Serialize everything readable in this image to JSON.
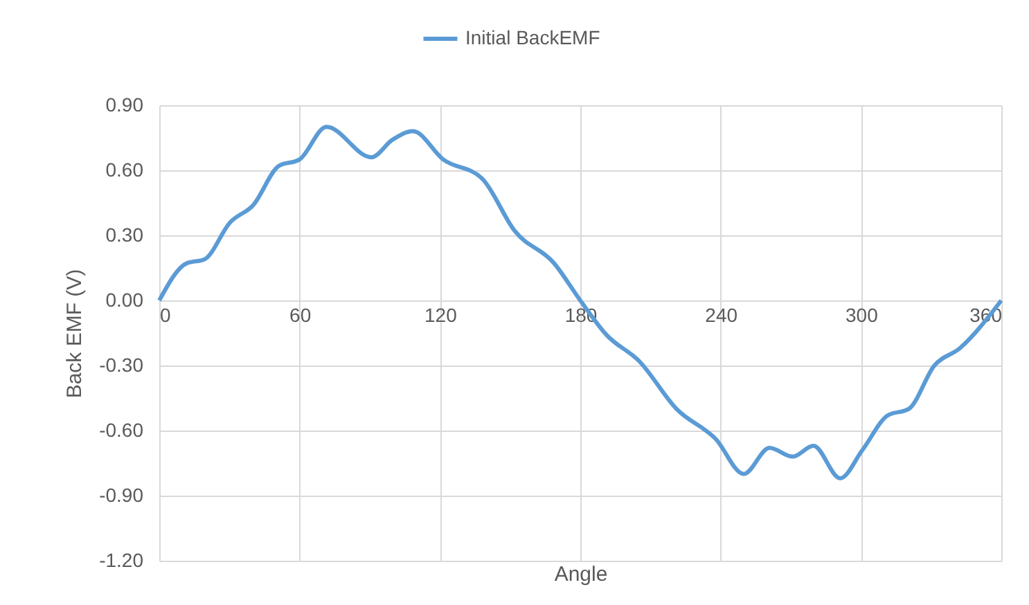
{
  "chart_data": {
    "type": "line",
    "xlabel": "Angle",
    "ylabel": "Back EMF (V)",
    "x": [
      0,
      11.5,
      19.4,
      30.3,
      40.2,
      51.1,
      60,
      71.5,
      90.7,
      99.6,
      108.5,
      121.4,
      138.2,
      152,
      168.9,
      180,
      191.3,
      205.2,
      221.1,
      238,
      249.9,
      260.9,
      270.8,
      279.7,
      291.1,
      300.6,
      311.5,
      320.5,
      331.4,
      342.3,
      360
    ],
    "series": [
      {
        "name": "Initial BackEMF",
        "color": "#5b9bd5",
        "values": [
          0,
          0.17,
          0.19,
          0.36,
          0.44,
          0.62,
          0.65,
          0.8,
          0.66,
          0.74,
          0.78,
          0.65,
          0.56,
          0.32,
          0.17,
          0,
          -0.16,
          -0.28,
          -0.5,
          -0.64,
          -0.8,
          -0.68,
          -0.72,
          -0.67,
          -0.82,
          -0.69,
          -0.53,
          -0.5,
          -0.3,
          -0.22,
          0
        ]
      }
    ],
    "xlim": [
      0,
      360
    ],
    "xticks": [
      0,
      60,
      120,
      180,
      240,
      300,
      360
    ],
    "ylim": [
      -1.2,
      0.9
    ],
    "yticks": [
      {
        "value": 0.9,
        "label": "0.90"
      },
      {
        "value": 0.6,
        "label": "0.60"
      },
      {
        "value": 0.3,
        "label": "0.30"
      },
      {
        "value": 0,
        "label": "0.00"
      },
      {
        "value": -0.3,
        "label": "-0.30"
      },
      {
        "value": -0.6,
        "label": "-0.60"
      },
      {
        "value": -0.9,
        "label": "-0.90"
      },
      {
        "value": -1.2,
        "label": "-1.20"
      }
    ],
    "grid": true,
    "legend": "top",
    "line_style": "solid",
    "marker": "none"
  }
}
